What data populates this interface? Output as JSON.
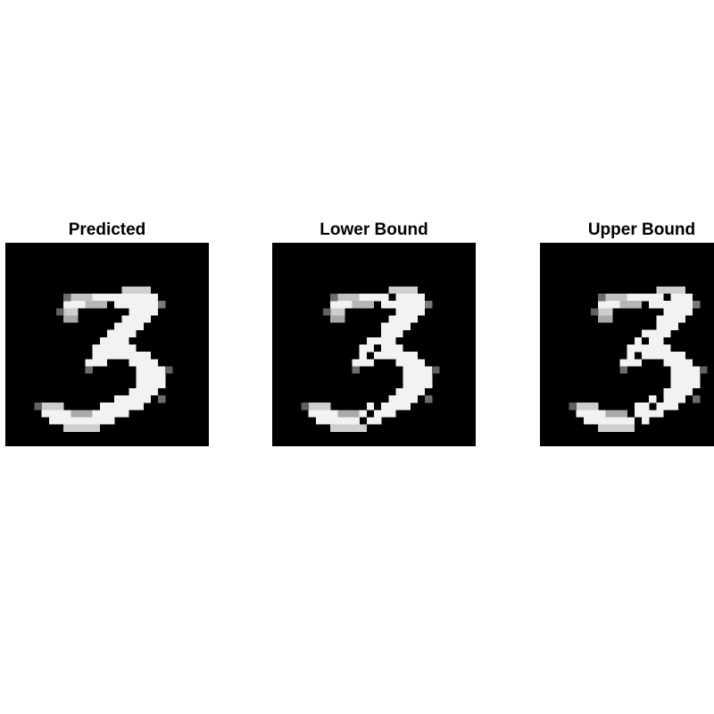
{
  "panels": [
    {
      "title": "Predicted",
      "image": "handwritten digit 3, grayscale pixel image",
      "background_color": "#000000",
      "foreground_color": "#f2f2f2"
    },
    {
      "title": "Lower Bound",
      "image": "handwritten digit 3 with dark pixel gaps along the stroke",
      "background_color": "#000000",
      "foreground_color": "#f2f2f2"
    },
    {
      "title": "Upper Bound",
      "image": "handwritten digit 3 with dark pixel gaps along the stroke",
      "background_color": "#000000",
      "foreground_color": "#f2f2f2"
    }
  ]
}
